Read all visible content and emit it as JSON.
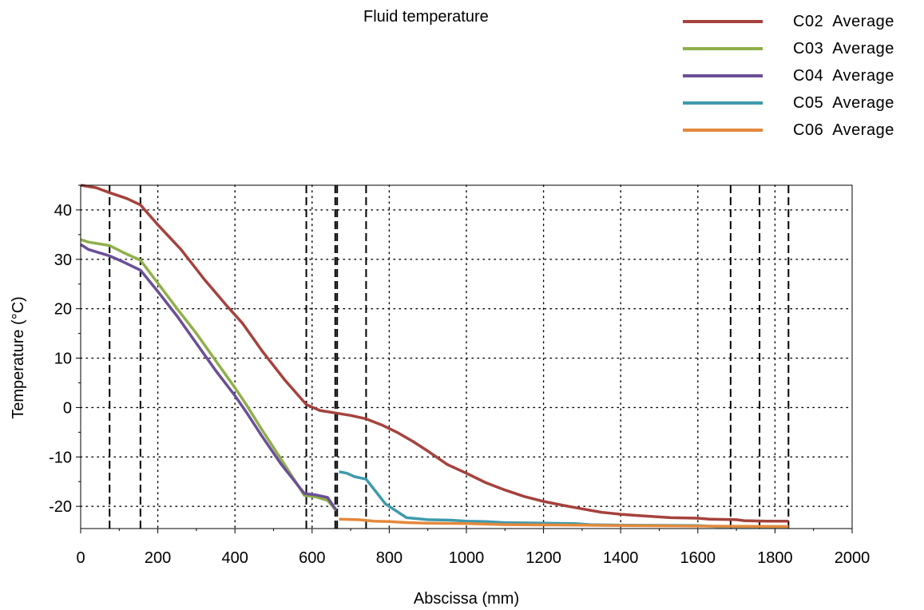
{
  "chart_data": {
    "type": "line",
    "title": "Fluid temperature",
    "xlabel": "Abscissa (mm)",
    "ylabel": "Temperature (°C)",
    "xlim": [
      0,
      2000
    ],
    "ylim": [
      -24.5,
      45
    ],
    "x_ticks": [
      0,
      200,
      400,
      600,
      800,
      1000,
      1200,
      1400,
      1600,
      1800,
      2000
    ],
    "y_ticks": [
      -20,
      -10,
      0,
      10,
      20,
      30,
      40
    ],
    "grid": true,
    "legend_position": "top-right",
    "section_markers": [
      75,
      155,
      585,
      660,
      665,
      740,
      1685,
      1760,
      1835
    ],
    "series": [
      {
        "name": "C02  Average",
        "color": "#a5423d",
        "points": [
          [
            0,
            45
          ],
          [
            40,
            44.5
          ],
          [
            75,
            43.5
          ],
          [
            120,
            42.3
          ],
          [
            155,
            41
          ],
          [
            200,
            37
          ],
          [
            260,
            32
          ],
          [
            320,
            26
          ],
          [
            380,
            20.5
          ],
          [
            420,
            17
          ],
          [
            470,
            11.5
          ],
          [
            530,
            5.5
          ],
          [
            585,
            0.6
          ],
          [
            620,
            -0.6
          ],
          [
            660,
            -1.1
          ],
          [
            700,
            -1.6
          ],
          [
            740,
            -2.3
          ],
          [
            780,
            -3.5
          ],
          [
            820,
            -5
          ],
          [
            860,
            -6.8
          ],
          [
            900,
            -8.8
          ],
          [
            950,
            -11.5
          ],
          [
            1000,
            -13.3
          ],
          [
            1050,
            -15.2
          ],
          [
            1100,
            -16.7
          ],
          [
            1150,
            -18
          ],
          [
            1200,
            -19
          ],
          [
            1250,
            -19.8
          ],
          [
            1300,
            -20.5
          ],
          [
            1350,
            -21.2
          ],
          [
            1400,
            -21.6
          ],
          [
            1450,
            -21.9
          ],
          [
            1530,
            -22.3
          ],
          [
            1600,
            -22.4
          ],
          [
            1630,
            -22.6
          ],
          [
            1700,
            -22.7
          ],
          [
            1720,
            -22.9
          ],
          [
            1780,
            -23
          ],
          [
            1835,
            -23
          ]
        ]
      },
      {
        "name": "C03  Average",
        "color": "#8fb04a",
        "points": [
          [
            0,
            34
          ],
          [
            20,
            33.5
          ],
          [
            75,
            32.8
          ],
          [
            110,
            31.4
          ],
          [
            155,
            29.8
          ],
          [
            200,
            25.2
          ],
          [
            250,
            20
          ],
          [
            300,
            15
          ],
          [
            350,
            9.5
          ],
          [
            400,
            4
          ],
          [
            430,
            0.5
          ],
          [
            470,
            -4.5
          ],
          [
            520,
            -10.5
          ],
          [
            580,
            -17.8
          ],
          [
            610,
            -18.1
          ],
          [
            640,
            -18.8
          ],
          [
            662,
            -20.8
          ]
        ]
      },
      {
        "name": "C04  Average",
        "color": "#6b4f97",
        "points": [
          [
            0,
            33
          ],
          [
            20,
            32
          ],
          [
            75,
            30.7
          ],
          [
            110,
            29.5
          ],
          [
            155,
            27.8
          ],
          [
            200,
            23.5
          ],
          [
            250,
            18.5
          ],
          [
            300,
            13
          ],
          [
            350,
            7.5
          ],
          [
            400,
            2.4
          ],
          [
            430,
            -1
          ],
          [
            470,
            -5.8
          ],
          [
            520,
            -11.5
          ],
          [
            580,
            -17.4
          ],
          [
            610,
            -17.7
          ],
          [
            640,
            -18.2
          ],
          [
            662,
            -20.7
          ]
        ]
      },
      {
        "name": "C05  Average",
        "color": "#3f9aad",
        "points": [
          [
            670,
            -13
          ],
          [
            690,
            -13.3
          ],
          [
            710,
            -14
          ],
          [
            740,
            -14.5
          ],
          [
            790,
            -19.5
          ],
          [
            845,
            -22.3
          ],
          [
            900,
            -22.7
          ],
          [
            960,
            -22.8
          ],
          [
            1000,
            -23
          ],
          [
            1050,
            -23.1
          ],
          [
            1100,
            -23.3
          ],
          [
            1200,
            -23.4
          ],
          [
            1280,
            -23.5
          ],
          [
            1320,
            -23.7
          ],
          [
            1400,
            -23.8
          ],
          [
            1600,
            -23.9
          ],
          [
            1650,
            -24.1
          ],
          [
            1835,
            -24.1
          ]
        ]
      },
      {
        "name": "C06  Average",
        "color": "#e4893c",
        "points": [
          [
            670,
            -22.6
          ],
          [
            720,
            -22.7
          ],
          [
            760,
            -23
          ],
          [
            800,
            -23.1
          ],
          [
            850,
            -23.3
          ],
          [
            900,
            -23.4
          ],
          [
            1000,
            -23.5
          ],
          [
            1050,
            -23.6
          ],
          [
            1100,
            -23.7
          ],
          [
            1300,
            -23.8
          ],
          [
            1400,
            -23.9
          ],
          [
            1835,
            -24.1
          ]
        ]
      }
    ]
  }
}
